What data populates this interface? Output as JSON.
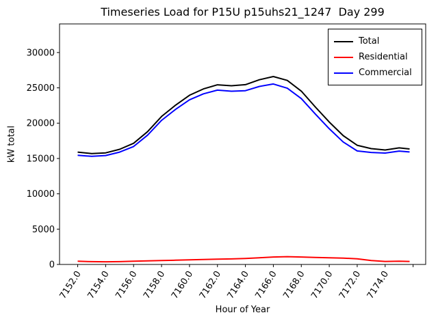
{
  "title": "Timeseries Load for P15U p15uhs21_1247  Day 299",
  "chart_data": {
    "type": "line",
    "title": "Timeseries Load for P15U p15uhs21_1247  Day 299",
    "xlabel": "Hour of Year",
    "ylabel": "kW total",
    "grid": false,
    "legend_position": "upper right",
    "xlim": [
      7150.7,
      7176.9
    ],
    "ylim": [
      0,
      34050
    ],
    "x_ticks": {
      "values": [
        7152,
        7154,
        7156,
        7158,
        7160,
        7162,
        7164,
        7166,
        7168,
        7170,
        7172,
        7174,
        7176
      ],
      "labels": [
        "7152.0",
        "7154.0",
        "7156.0",
        "7158.0",
        "7160.0",
        "7162.0",
        "7164.0",
        "7166.0",
        "7168.0",
        "7170.0",
        "7172.0",
        "7174.0",
        ""
      ]
    },
    "y_ticks": {
      "values": [
        0,
        5000,
        10000,
        15000,
        20000,
        25000,
        30000
      ],
      "labels": [
        "0",
        "5000",
        "10000",
        "15000",
        "20000",
        "25000",
        "30000"
      ]
    },
    "x": [
      7152,
      7153,
      7154,
      7155,
      7156,
      7157,
      7158,
      7159,
      7160,
      7161,
      7162,
      7163,
      7164,
      7165,
      7166,
      7167,
      7168,
      7169,
      7170,
      7171,
      7172,
      7173,
      7174,
      7175,
      7175.75
    ],
    "series": [
      {
        "name": "Total",
        "color": "#000000",
        "values": [
          15900,
          15700,
          15800,
          16300,
          17150,
          18800,
          20950,
          22550,
          23950,
          24850,
          25430,
          25300,
          25450,
          26150,
          26600,
          26050,
          24530,
          22300,
          20160,
          18230,
          16870,
          16400,
          16200,
          16500,
          16350
        ]
      },
      {
        "name": "Residential",
        "color": "#ff0000",
        "values": [
          450,
          400,
          380,
          400,
          450,
          500,
          550,
          600,
          650,
          700,
          750,
          780,
          850,
          950,
          1050,
          1100,
          1050,
          1000,
          950,
          900,
          800,
          550,
          430,
          450,
          430
        ]
      },
      {
        "name": "Commercial",
        "color": "#0000ff",
        "values": [
          15450,
          15300,
          15420,
          15900,
          16700,
          18300,
          20400,
          21950,
          23300,
          24150,
          24680,
          24520,
          24600,
          25200,
          25550,
          24950,
          23480,
          21300,
          19210,
          17330,
          16070,
          15850,
          15770,
          16050,
          15920
        ]
      }
    ]
  }
}
